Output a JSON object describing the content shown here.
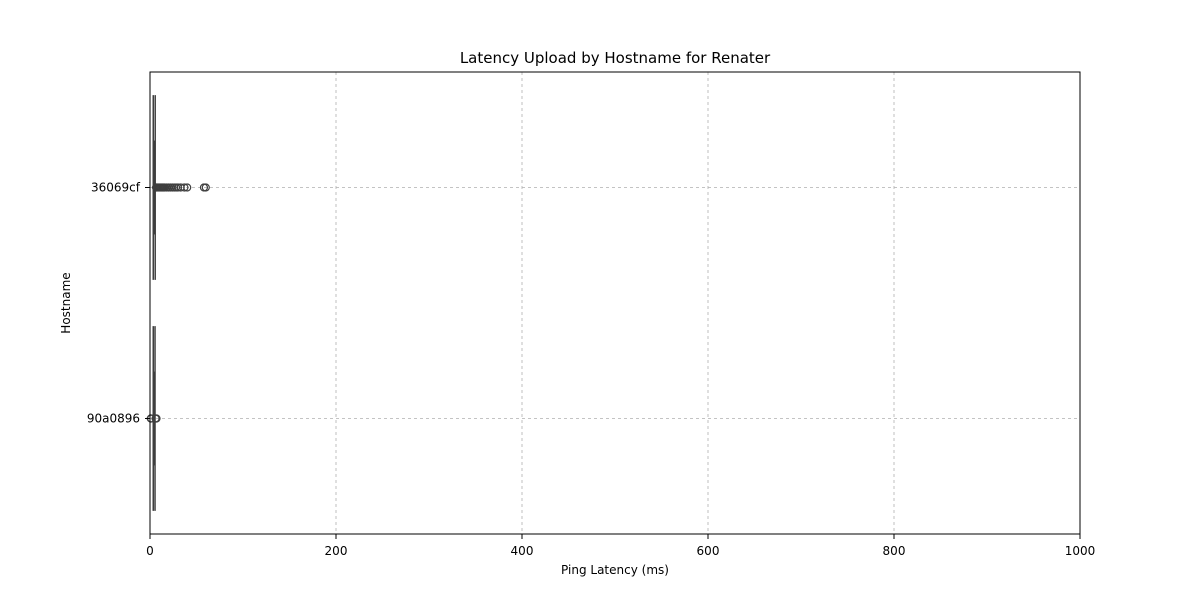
{
  "chart_data": {
    "type": "boxplot",
    "orientation": "horizontal",
    "title": "Latency Upload by Hostname for Renater",
    "xlabel": "Ping Latency (ms)",
    "ylabel": "Hostname",
    "xlim": [
      0,
      1000
    ],
    "xticks": [
      0,
      200,
      400,
      600,
      800,
      1000
    ],
    "grid": true,
    "categories": [
      "36069cf",
      "90a0896"
    ],
    "boxes": [
      {
        "category": "36069cf",
        "whisker_low": 3.5,
        "q1": 3.8,
        "median": 4.3,
        "q3": 5.2,
        "whisker_high": 5.6,
        "outliers": [
          6.5,
          7,
          8,
          9,
          10,
          11,
          12,
          13,
          14,
          15,
          16,
          18,
          20,
          22,
          24,
          26,
          28,
          30,
          33,
          37,
          40,
          58,
          60
        ]
      },
      {
        "category": "90a0896",
        "whisker_low": 3.5,
        "q1": 3.9,
        "median": 4.3,
        "q3": 5.0,
        "whisker_high": 5.4,
        "outliers": [
          0.8,
          1.2,
          6.0,
          6.5,
          7.0
        ]
      }
    ],
    "colors": {
      "box_line": "#3f3f3f",
      "grid": "#b0b0b0",
      "axis": "#000000"
    }
  }
}
